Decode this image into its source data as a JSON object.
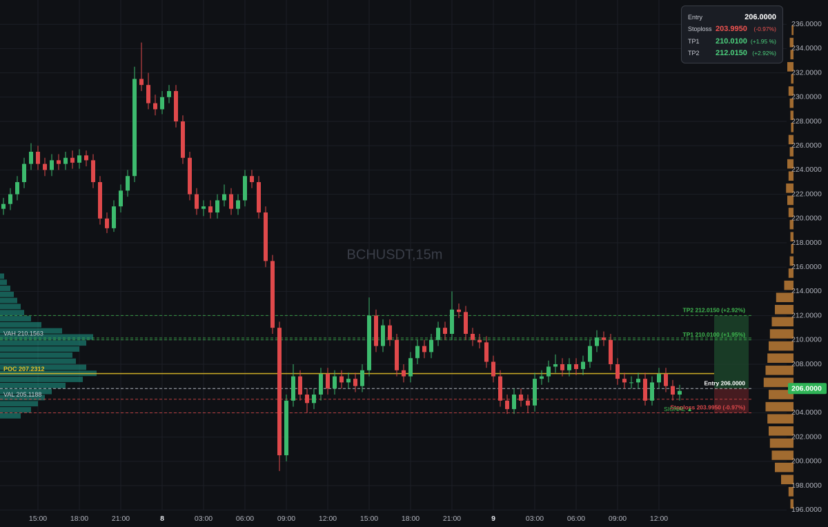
{
  "chart_data": {
    "type": "candlestick",
    "title": "BCHUSDT,15m",
    "x": [
      12.5,
      13,
      13.5,
      14,
      14.5,
      15,
      15.5,
      16,
      16.5,
      17,
      17.5,
      18,
      18.5,
      19,
      19.5,
      20,
      20.5,
      21,
      21.5,
      22,
      22.5,
      23,
      23.5,
      24,
      24.5,
      25,
      25.5,
      26,
      26.5,
      27,
      27.5,
      28,
      28.5,
      29,
      29.5,
      30,
      30.5,
      31,
      31.5,
      32,
      32.5,
      33,
      33.5,
      34,
      34.5,
      35,
      35.5,
      36,
      36.5,
      37,
      37.5,
      38,
      38.5,
      39,
      39.5,
      40,
      40.5,
      41,
      41.5,
      42,
      42.5,
      43,
      43.5,
      44,
      44.5,
      45,
      45.5,
      46,
      46.5,
      47,
      47.5,
      48,
      48.5,
      49,
      49.5,
      50,
      50.5,
      51,
      51.5,
      52,
      52.5,
      53,
      53.5,
      54,
      54.5,
      55,
      55.5,
      56,
      56.5,
      57,
      57.5,
      58,
      58.5,
      59,
      59.5,
      60,
      60.5,
      61,
      61.5
    ],
    "open": [
      220.8,
      221.2,
      222,
      223,
      224.5,
      225.5,
      224.5,
      224,
      224.8,
      224.5,
      225,
      224.6,
      225.2,
      224.8,
      223,
      220,
      219.2,
      221,
      222.3,
      223.5,
      231.5,
      231,
      229.5,
      229,
      230,
      230.5,
      228,
      225,
      222,
      220.8,
      221,
      220.5,
      221.5,
      222,
      220.8,
      221.5,
      223.5,
      223,
      220.5,
      216.5,
      211,
      200.5,
      205,
      207,
      205.5,
      204.8,
      205.5,
      207.2,
      206,
      207,
      206.5,
      206.8,
      206.2,
      207.5,
      212,
      209.5,
      211.2,
      210,
      207.5,
      207,
      208.5,
      209.5,
      209,
      210,
      211,
      210.5,
      212.5,
      212.3,
      210.5,
      210,
      209.8,
      208.2,
      207,
      205,
      204.3,
      205.5,
      205,
      204.6,
      206.8,
      207,
      207.8,
      208,
      207.5,
      208,
      207.6,
      208.2,
      209.5,
      210.2,
      210,
      208,
      206.8,
      206.5,
      206.5,
      206.8,
      205,
      206.5,
      207.2,
      206.2,
      205.5
    ],
    "high": [
      221.7,
      222.5,
      223.5,
      225,
      226.2,
      226,
      225,
      225.3,
      225.3,
      225.5,
      225.6,
      225.7,
      225.6,
      225.3,
      223.5,
      220.5,
      221.5,
      222.8,
      224,
      232.5,
      234.5,
      232,
      230.2,
      230.5,
      231,
      231,
      228.5,
      225.5,
      222.5,
      221.5,
      221.5,
      222,
      222.8,
      222.5,
      222,
      224,
      224,
      223.5,
      221,
      217,
      211.5,
      205.5,
      208,
      207.5,
      206,
      206,
      207.7,
      207.7,
      207.5,
      207.5,
      207.3,
      207.3,
      208,
      213.5,
      212.5,
      211.7,
      211.7,
      210.5,
      208,
      209,
      210,
      210,
      210.5,
      211.5,
      211.5,
      214,
      213,
      212.8,
      211,
      210.5,
      210.3,
      208.7,
      207.5,
      205.5,
      206,
      206,
      205.5,
      207.3,
      207.5,
      208.3,
      208.8,
      208.5,
      208.5,
      208.5,
      208.7,
      210,
      210.8,
      210.7,
      210.5,
      208.5,
      207.3,
      207,
      207.3,
      207.3,
      207,
      207.7,
      207.7,
      206.7,
      206.3
    ],
    "low": [
      220.3,
      220.7,
      221.5,
      222.5,
      224,
      224,
      223.5,
      223.5,
      224,
      224,
      224.1,
      224.1,
      224.3,
      222.5,
      219.5,
      218.8,
      218.9,
      220.5,
      221.8,
      223,
      230.5,
      229,
      228.5,
      228.6,
      229.5,
      227.5,
      224.5,
      221.5,
      220.3,
      220.2,
      220,
      220,
      221,
      220.3,
      220.3,
      221,
      222.5,
      220,
      216,
      210.5,
      199.2,
      200,
      204.5,
      205,
      204,
      204.3,
      205,
      205.5,
      205.5,
      206,
      206,
      205.7,
      205.7,
      207,
      209,
      209,
      209.5,
      207,
      206.5,
      206.5,
      208,
      208.5,
      208.5,
      209.5,
      210,
      210,
      211.8,
      210,
      209.5,
      209.3,
      207.7,
      206.5,
      204.5,
      203.9,
      203.9,
      204.5,
      204,
      204.1,
      206.3,
      206.5,
      207.3,
      207,
      207,
      207.1,
      207.1,
      207.7,
      209,
      209.5,
      207.5,
      206.3,
      206,
      206,
      206,
      204.6,
      204.6,
      206,
      205.7,
      205,
      205
    ],
    "close": [
      221.2,
      222,
      223,
      224.5,
      225.5,
      224.5,
      224,
      224.8,
      224.5,
      225,
      224.6,
      225.2,
      224.8,
      223,
      220,
      219.2,
      221,
      222.3,
      223.5,
      231.5,
      231,
      229.5,
      229,
      230,
      230.5,
      228,
      225,
      222,
      220.8,
      221,
      220.5,
      221.5,
      222,
      220.8,
      221.5,
      223.5,
      223,
      220.5,
      216.5,
      211,
      200.5,
      205,
      207,
      205.5,
      204.8,
      205.5,
      207.2,
      206,
      207,
      206.5,
      206.8,
      206.2,
      207.5,
      212,
      209.5,
      211.2,
      210,
      207.5,
      207,
      208.5,
      209.5,
      209,
      210,
      211,
      210.5,
      212.5,
      212.3,
      210.5,
      210,
      209.8,
      208.2,
      207,
      205,
      204.3,
      205.5,
      205,
      204.6,
      206.8,
      207,
      207.8,
      208,
      207.5,
      208,
      207.6,
      208.2,
      209.5,
      210.2,
      210,
      208,
      206.8,
      206.5,
      206.5,
      206.8,
      205,
      206.5,
      207.2,
      206.2,
      205.5,
      205.8
    ],
    "up_color": "#3dbb6e",
    "down_color": "#e0494b",
    "xlim": [
      12.25,
      69.25
    ],
    "ylim": [
      196,
      238
    ],
    "xticks": [
      {
        "value": 15,
        "label": "15:00"
      },
      {
        "value": 18,
        "label": "18:00"
      },
      {
        "value": 21,
        "label": "21:00"
      },
      8,
      {
        "value": 27,
        "label": "03:00"
      },
      {
        "value": 30,
        "label": "06:00"
      },
      {
        "value": 33,
        "label": "09:00"
      },
      {
        "value": 36,
        "label": "12:00"
      },
      {
        "value": 39,
        "label": "15:00"
      },
      {
        "value": 42,
        "label": "18:00"
      },
      {
        "value": 45,
        "label": "21:00"
      },
      9,
      {
        "value": 51,
        "label": "03:00"
      },
      {
        "value": 54,
        "label": "06:00"
      },
      {
        "value": 57,
        "label": "09:00"
      },
      {
        "value": 60,
        "label": "12:00"
      }
    ],
    "day_ticks": [
      {
        "value": 24,
        "label": "8"
      },
      {
        "value": 48,
        "label": "9"
      }
    ],
    "yticks": [
      {
        "value": 196,
        "label": "196.0000"
      },
      {
        "value": 198,
        "label": "198.0000"
      },
      {
        "value": 200,
        "label": "200.0000"
      },
      {
        "value": 202,
        "label": "202.0000"
      },
      {
        "value": 204,
        "label": "204.0000"
      },
      {
        "value": 206,
        "label": "206.0000"
      },
      {
        "value": 208,
        "label": "208.0000"
      },
      {
        "value": 210,
        "label": "210.0000"
      },
      {
        "value": 212,
        "label": "212.0000"
      },
      {
        "value": 214,
        "label": "214.0000"
      },
      {
        "value": 216,
        "label": "216.0000"
      },
      {
        "value": 218,
        "label": "218.0000"
      },
      {
        "value": 220,
        "label": "220.0000"
      },
      {
        "value": 222,
        "label": "222.0000"
      },
      {
        "value": 224,
        "label": "224.0000"
      },
      {
        "value": 226,
        "label": "226.0000"
      },
      {
        "value": 228,
        "label": "228.0000"
      },
      {
        "value": 230,
        "label": "230.0000"
      },
      {
        "value": 232,
        "label": "232.0000"
      },
      {
        "value": 234,
        "label": "234.0000"
      },
      {
        "value": 236,
        "label": "236.0000"
      }
    ],
    "grid": true,
    "levels": [
      {
        "label": "TP2 212.0150 (+2.92%)",
        "value": 212.015,
        "color": "#3fb950"
      },
      {
        "label": "TP1 210.0100 (+1.95%)",
        "value": 210.01,
        "color": "#3fb950"
      },
      {
        "label": "Entry 206.0000",
        "value": 206,
        "color": "#d6d8de"
      },
      {
        "label": "Stoploss 203.9950 (-0.97%)",
        "value": 203.995,
        "color": "#e0494b"
      }
    ],
    "profile_levels": [
      {
        "label": "VAH 210.1563",
        "value": 210.1563,
        "color": "#3fb950"
      },
      {
        "label": "POC 207.2312",
        "value": 207.2312,
        "color": "#e6c229"
      },
      {
        "label": "VAL 205.1188",
        "value": 205.1188,
        "color": "#e0494b"
      }
    ],
    "signal": "SIGNAL ▲",
    "price_tag": {
      "label": "206.0000",
      "value": 206
    },
    "volume_profile_left": {
      "bins": [
        203.5,
        204,
        204.5,
        205,
        205.5,
        206,
        206.5,
        207,
        207.5,
        208,
        208.5,
        209,
        209.5,
        210,
        210.5,
        211,
        211.5,
        212,
        212.5,
        213,
        213.5,
        214,
        214.5,
        215,
        215.5
      ],
      "values": [
        30,
        45,
        55,
        65,
        75,
        95,
        120,
        140,
        125,
        110,
        105,
        115,
        125,
        135,
        90,
        60,
        45,
        35,
        30,
        25,
        20,
        15,
        10,
        6
      ],
      "xlim": [
        0,
        140
      ],
      "color": "#1f9e8c"
    },
    "volume_profile_right": {
      "bins": [
        196,
        197,
        198,
        199,
        200,
        201,
        202,
        203,
        204,
        205,
        206,
        207,
        208,
        209,
        210,
        211,
        212,
        213,
        214,
        215,
        216,
        217,
        218,
        219,
        220,
        221,
        222,
        223,
        224,
        225,
        226,
        227,
        228,
        229,
        230,
        231,
        232,
        233,
        234,
        235,
        236
      ],
      "values": [
        5,
        8,
        20,
        30,
        35,
        38,
        40,
        42,
        45,
        40,
        48,
        45,
        42,
        40,
        38,
        35,
        30,
        28,
        15,
        8,
        6,
        4,
        5,
        6,
        8,
        10,
        12,
        8,
        10,
        6,
        8,
        4,
        5,
        6,
        8,
        4,
        10,
        5,
        6,
        3
      ],
      "xlim": [
        0,
        50
      ],
      "color": "#e0913c"
    },
    "panel": {
      "rows": [
        {
          "name": "Entry",
          "price": "206.0000"
        },
        {
          "name": "Stoploss",
          "price": "203.9950",
          "change": "(-0.97%)"
        },
        {
          "name": "TP1",
          "price": "210.0100",
          "change": "(+1.95 %)"
        },
        {
          "name": "TP2",
          "price": "212.0150",
          "change": "(+2.92%)"
        }
      ]
    }
  }
}
